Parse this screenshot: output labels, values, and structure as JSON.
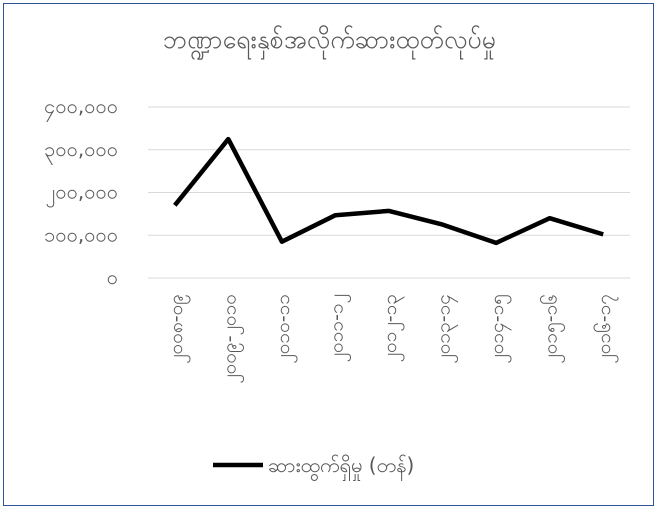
{
  "chart_data": {
    "type": "line",
    "title": "ဘဏ္ဍာရေးနှစ်အလိုက်ဆားထုတ်လုပ်မှု",
    "xlabel": "",
    "ylabel": "",
    "categories": [
      "၂၀၀၈-၀၉",
      "၂၀၀၉-၂၀၁၀",
      "၂၀၁၀-၁၁",
      "၂၀၁၁-၁၂",
      "၂၀၁၂-၁၃",
      "၂၀၁၃-၁၄",
      "၂၀၁၄-၁၅",
      "၂၀၁၅-၁၆",
      "၂၀၁၆-၁၇"
    ],
    "series": [
      {
        "name": "ဆားထွက်ရှိမှု (တန်)",
        "values": [
          170000,
          325000,
          85000,
          147000,
          157000,
          125000,
          82000,
          140000,
          102000
        ]
      }
    ],
    "ylim": [
      0,
      400000
    ],
    "yticks": [
      0,
      100000,
      200000,
      300000,
      400000
    ],
    "ytick_labels": [
      "၀",
      "၁၀၀,၀၀၀",
      "၂၀၀,၀၀၀",
      "၃၀၀,၀၀၀",
      "၄၀၀,၀၀၀"
    ],
    "grid": true,
    "legend_position": "bottom",
    "colors": {
      "line": "#000000",
      "grid": "#d9d9d9",
      "axis_text": "#595959",
      "frame": "#2f5597"
    }
  }
}
